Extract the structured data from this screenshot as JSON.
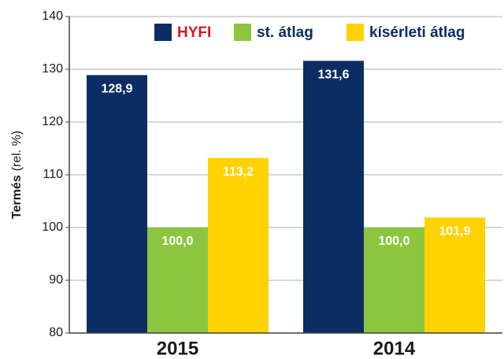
{
  "chart_data": {
    "type": "bar",
    "ylabel": {
      "main": "Termés",
      "unit": "(rel. %)"
    },
    "categories": [
      "2015",
      "2014"
    ],
    "series": [
      {
        "name": "HYFI",
        "color": "#0c2d63",
        "label_color": "#d71920",
        "values": [
          128.9,
          131.6
        ],
        "value_labels": [
          "128,9",
          "131,6"
        ]
      },
      {
        "name": "st. átlag",
        "color": "#8cc63f",
        "label_color": "#0c2d63",
        "values": [
          100.0,
          100.0
        ],
        "value_labels": [
          "100,0",
          "100,0"
        ]
      },
      {
        "name": "kísérleti átlag",
        "color": "#ffd200",
        "label_color": "#0c2d63",
        "values": [
          113.2,
          101.9
        ],
        "value_labels": [
          "113,2",
          "101,9"
        ]
      }
    ],
    "ylim": [
      80,
      140
    ],
    "yticks": [
      80,
      90,
      100,
      110,
      120,
      130,
      140
    ],
    "grid": true,
    "legend": "top"
  }
}
